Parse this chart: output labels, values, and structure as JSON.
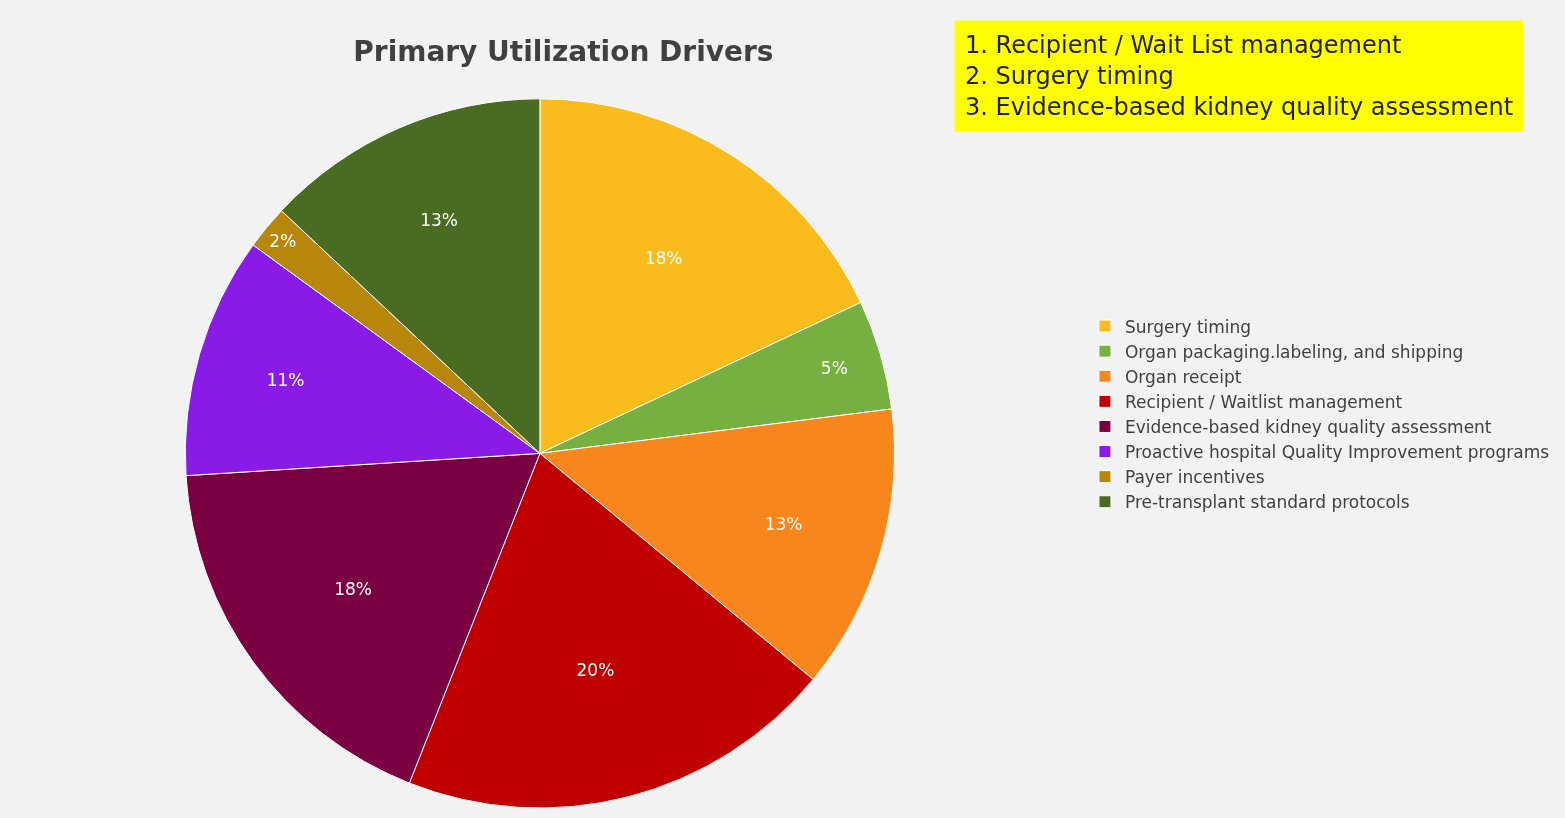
{
  "chart_data": {
    "type": "pie",
    "title": "Primary Utilization Drivers",
    "categories": [
      "Surgery timing",
      "Organ packaging.labeling, and shipping",
      "Organ receipt",
      "Recipient / Waitlist management",
      "Evidence-based kidney quality assessment",
      "Proactive hospital Quality Improvement programs",
      "Payer incentives",
      "Pre-transplant standard protocols"
    ],
    "values": [
      18,
      5,
      13,
      20,
      18,
      11,
      2,
      13
    ],
    "value_labels": [
      "18%",
      "5%",
      "13%",
      "20%",
      "18%",
      "11%",
      "2%",
      "13%"
    ],
    "colors": [
      "#f9bc1c",
      "#76b041",
      "#f7861c",
      "#c00000",
      "#7b0041",
      "#8a1be6",
      "#b8860b",
      "#4a6b22"
    ],
    "legend": "right",
    "annotations": [
      "1. Recipient / Wait List management",
      "2. Surgery timing",
      "3. Evidence-based kidney quality assessment"
    ]
  }
}
